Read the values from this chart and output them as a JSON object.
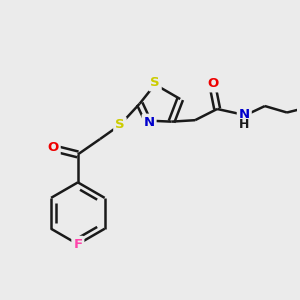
{
  "bg_color": "#ebebeb",
  "bond_color": "#1a1a1a",
  "atom_colors": {
    "S": "#cccc00",
    "N": "#0000cc",
    "O": "#ee0000",
    "F": "#ff44aa",
    "C": "#1a1a1a"
  },
  "lw": 1.8,
  "dbo": 0.12,
  "xlim": [
    0,
    10
  ],
  "ylim": [
    0,
    10
  ]
}
